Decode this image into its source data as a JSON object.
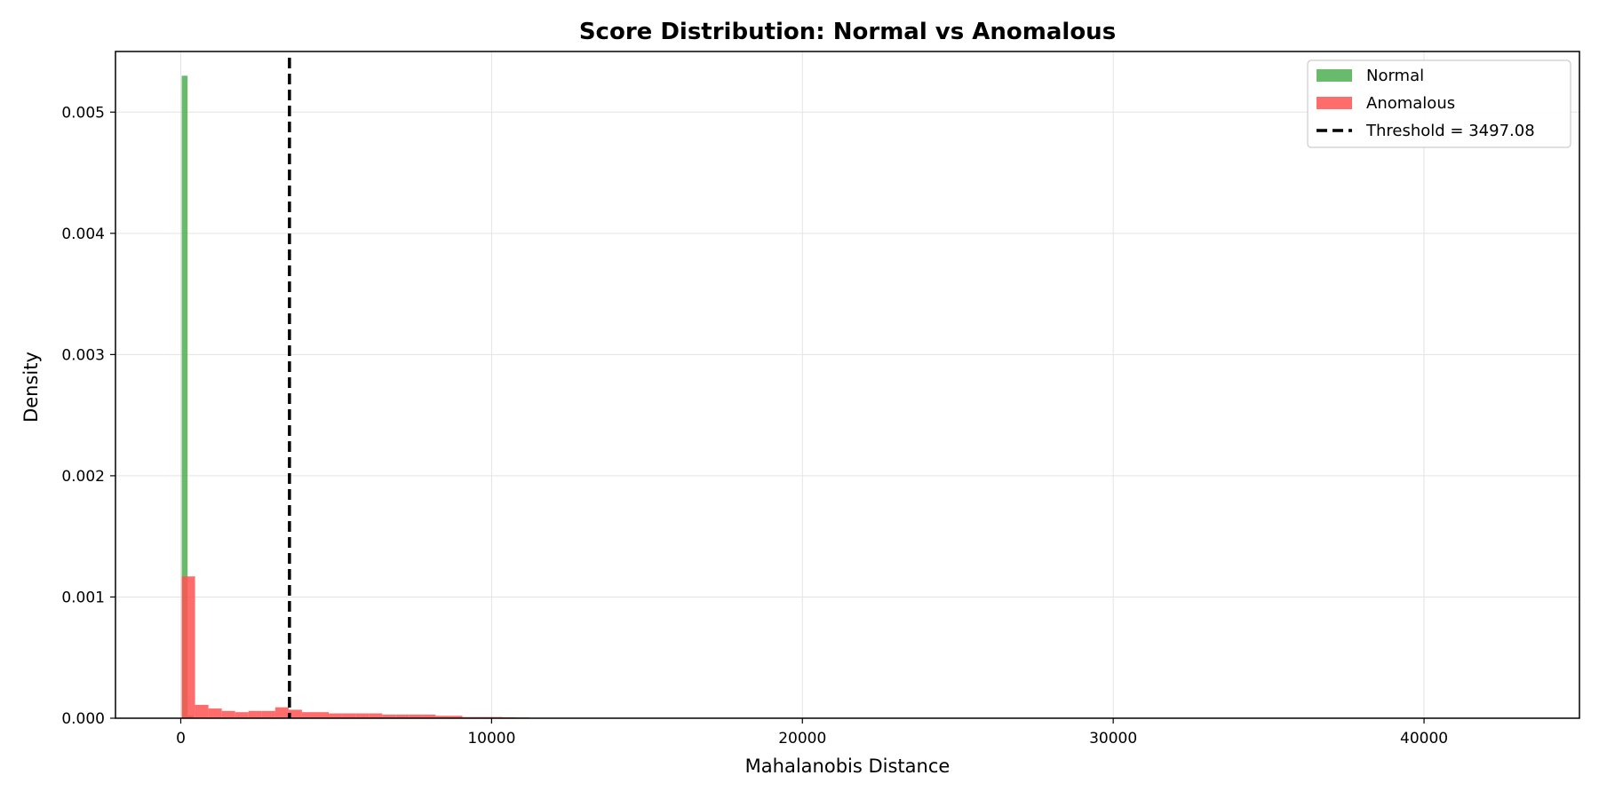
{
  "chart_data": {
    "type": "bar",
    "title": "Score Distribution: Normal vs Anomalous",
    "xlabel": "Mahalanobis Distance",
    "ylabel": "Density",
    "xlim": [
      -2100,
      45000
    ],
    "ylim": [
      0,
      0.0055
    ],
    "xticks": [
      0,
      10000,
      20000,
      30000,
      40000
    ],
    "xtick_labels": [
      "0",
      "10000",
      "20000",
      "30000",
      "40000"
    ],
    "yticks": [
      0.0,
      0.001,
      0.002,
      0.003,
      0.004,
      0.005
    ],
    "ytick_labels": [
      "0.000",
      "0.001",
      "0.002",
      "0.003",
      "0.004",
      "0.005"
    ],
    "grid": true,
    "legend_position": "top-right",
    "threshold": {
      "label": "Threshold = 3497.08",
      "value": 3497.08,
      "color": "#000000",
      "style": "dashed"
    },
    "series": [
      {
        "name": "Normal",
        "color": "#4caf50",
        "opacity": 0.85,
        "bin_width": 190,
        "bins": [
          {
            "x0": 30,
            "value": 0.0053
          },
          {
            "x0": 220,
            "value": 2e-05
          }
        ]
      },
      {
        "name": "Anomalous",
        "color": "#ff5252",
        "opacity": 0.85,
        "bin_width": 430,
        "bins": [
          {
            "x0": 30,
            "value": 0.00117
          },
          {
            "x0": 460,
            "value": 0.00011
          },
          {
            "x0": 890,
            "value": 8e-05
          },
          {
            "x0": 1320,
            "value": 6e-05
          },
          {
            "x0": 1750,
            "value": 5e-05
          },
          {
            "x0": 2180,
            "value": 6e-05
          },
          {
            "x0": 2610,
            "value": 6e-05
          },
          {
            "x0": 3040,
            "value": 9e-05
          },
          {
            "x0": 3470,
            "value": 7e-05
          },
          {
            "x0": 3900,
            "value": 5e-05
          },
          {
            "x0": 4330,
            "value": 5e-05
          },
          {
            "x0": 4760,
            "value": 4e-05
          },
          {
            "x0": 5190,
            "value": 4e-05
          },
          {
            "x0": 5620,
            "value": 4e-05
          },
          {
            "x0": 6050,
            "value": 4e-05
          },
          {
            "x0": 6480,
            "value": 3e-05
          },
          {
            "x0": 6910,
            "value": 3e-05
          },
          {
            "x0": 7340,
            "value": 3e-05
          },
          {
            "x0": 7770,
            "value": 3e-05
          },
          {
            "x0": 8200,
            "value": 2e-05
          },
          {
            "x0": 8630,
            "value": 2e-05
          },
          {
            "x0": 9060,
            "value": 1e-05
          },
          {
            "x0": 9490,
            "value": 1e-05
          },
          {
            "x0": 9920,
            "value": 1e-05
          },
          {
            "x0": 10350,
            "value": 8e-06
          },
          {
            "x0": 10780,
            "value": 6e-06
          }
        ]
      }
    ]
  }
}
